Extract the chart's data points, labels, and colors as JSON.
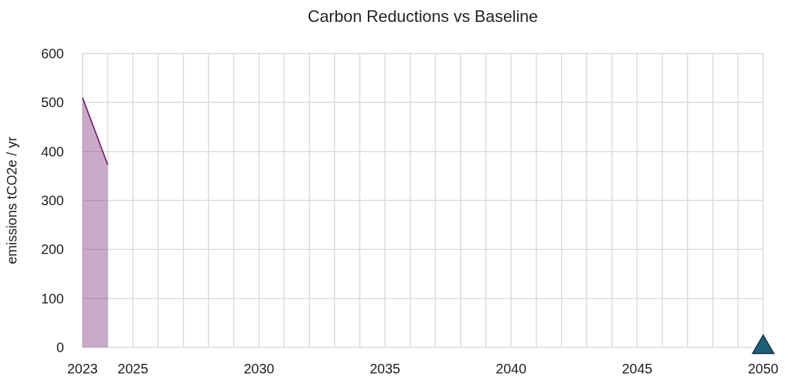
{
  "chart_data": {
    "type": "area",
    "title": "Carbon Reductions vs Baseline",
    "ylabel": "emissions tCO2e / yr",
    "xlim": [
      2023,
      2050
    ],
    "xticks": [
      2023,
      {
        "value": 2024,
        "label": null
      },
      2025,
      {
        "value": 2026,
        "label": null
      },
      {
        "value": 2027,
        "label": null
      },
      {
        "value": 2028,
        "label": null
      },
      {
        "value": 2029,
        "label": null
      },
      2030,
      {
        "value": 2031,
        "label": null
      },
      {
        "value": 2032,
        "label": null
      },
      {
        "value": 2033,
        "label": null
      },
      {
        "value": 2034,
        "label": null
      },
      2035,
      {
        "value": 2036,
        "label": null
      },
      {
        "value": 2037,
        "label": null
      },
      {
        "value": 2038,
        "label": null
      },
      {
        "value": 2039,
        "label": null
      },
      2040,
      {
        "value": 2041,
        "label": null
      },
      {
        "value": 2042,
        "label": null
      },
      {
        "value": 2043,
        "label": null
      },
      {
        "value": 2044,
        "label": null
      },
      2045,
      {
        "value": 2046,
        "label": null
      },
      {
        "value": 2047,
        "label": null
      },
      {
        "value": 2048,
        "label": null
      },
      {
        "value": 2049,
        "label": null
      },
      2050
    ],
    "ylim": [
      0,
      600
    ],
    "yticks": [
      0,
      100,
      200,
      300,
      400,
      500,
      600
    ],
    "grid": true,
    "series": [
      {
        "color": "#7b2a77",
        "x": [
          2023,
          2024
        ],
        "values": [
          510,
          373
        ]
      },
      {
        "type": "scatter",
        "color": "#1f5f7a",
        "marker": "triangle",
        "x": [
          2050
        ],
        "values": [
          0
        ]
      }
    ]
  }
}
